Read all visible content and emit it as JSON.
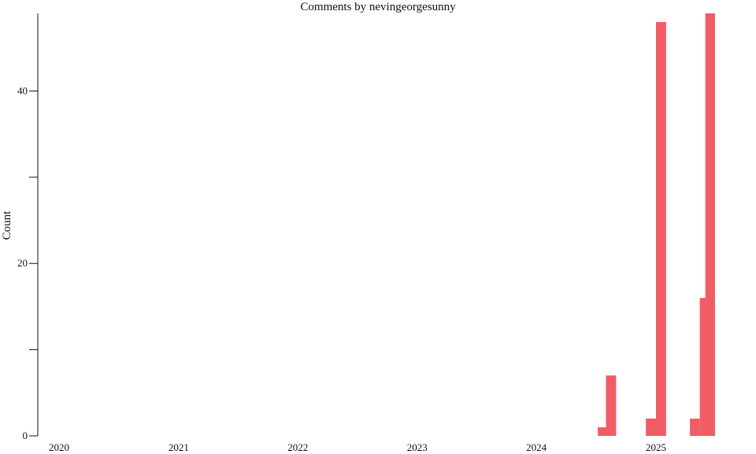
{
  "chart_data": {
    "type": "bar",
    "title": "Comments by nevingeorgesunny",
    "ylabel": "Count",
    "xlabel": "",
    "ylim": [
      0,
      49
    ],
    "yticks": [
      0,
      10,
      20,
      30,
      40
    ],
    "ytick_labels": [
      "0",
      "",
      "20",
      "",
      "40"
    ],
    "xticks": [
      "2020",
      "2021",
      "2022",
      "2023",
      "2024",
      "2025"
    ],
    "bar_color": "#f25c66",
    "grid": false,
    "legend": "none",
    "bars": [
      {
        "start": "2024-07-07",
        "end": "2024-08-01",
        "value": 1
      },
      {
        "start": "2024-08-01",
        "end": "2024-09-01",
        "value": 7
      },
      {
        "start": "2024-12-01",
        "end": "2025-01-01",
        "value": 2
      },
      {
        "start": "2025-01-01",
        "end": "2025-02-01",
        "value": 48
      },
      {
        "start": "2025-04-15",
        "end": "2025-05-15",
        "value": 2
      },
      {
        "start": "2025-05-15",
        "end": "2025-06-01",
        "value": 16
      },
      {
        "start": "2025-06-01",
        "end": "2025-07-01",
        "value": 49
      }
    ]
  }
}
